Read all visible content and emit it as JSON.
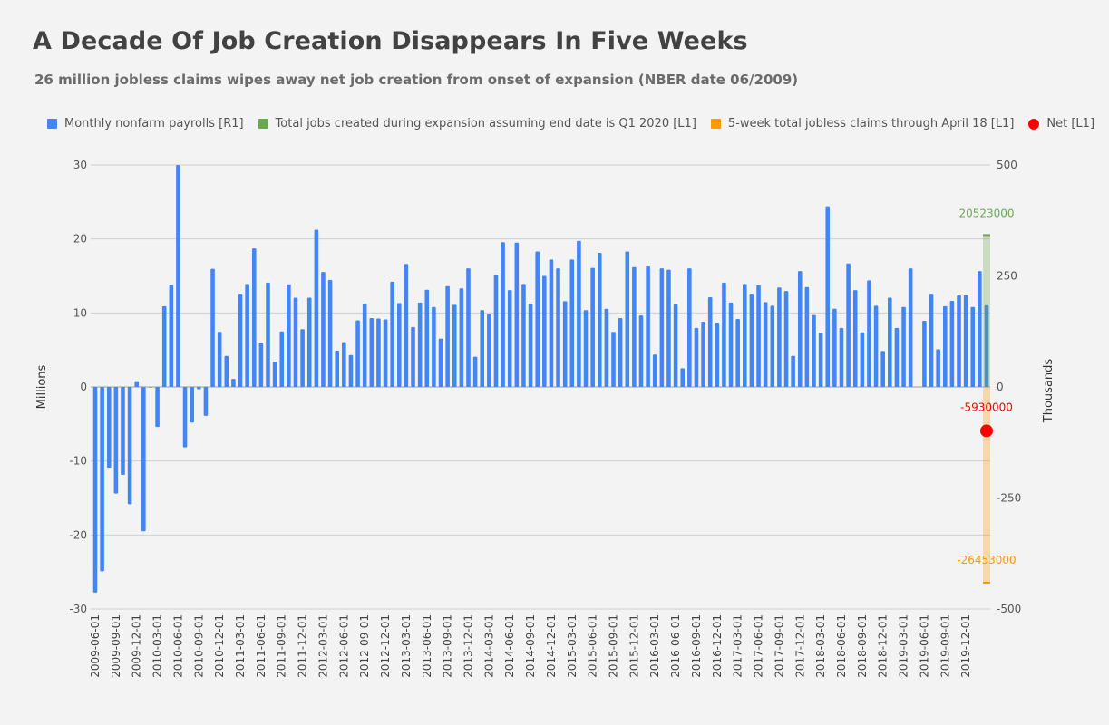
{
  "title": "A Decade Of Job Creation Disappears In Five Weeks",
  "subtitle": "26 million jobless claims wipes away net job creation from onset of expansion (NBER date 06/2009)",
  "legend": [
    {
      "label": "Monthly nonfarm payrolls [R1]",
      "color": "#4285f4",
      "shape": "square"
    },
    {
      "label": "Total jobs created during expansion assuming end date is Q1 2020 [L1]",
      "color": "#6aa84f",
      "shape": "square"
    },
    {
      "label": "5-week total jobless claims through April 18 [L1]",
      "color": "#ff9900",
      "shape": "square"
    },
    {
      "label": "Net [L1]",
      "color": "#ff0000",
      "shape": "dot"
    }
  ],
  "chart_data": {
    "type": "bar",
    "left_axis": {
      "label": "Millions",
      "ticks": [
        30,
        20,
        10,
        0,
        -10,
        -20,
        -30
      ],
      "ylim": [
        -30,
        30
      ]
    },
    "right_axis": {
      "label": "Thousands",
      "ticks": [
        500,
        250,
        0,
        -250,
        -500
      ],
      "ylim": [
        -500,
        500
      ]
    },
    "x_tick_labels": [
      "2009-06-01",
      "2009-09-01",
      "2009-12-01",
      "2010-03-01",
      "2010-06-01",
      "2010-09-01",
      "2010-12-01",
      "2011-03-01",
      "2011-06-01",
      "2011-09-01",
      "2011-12-01",
      "2012-03-01",
      "2012-06-01",
      "2012-09-01",
      "2012-12-01",
      "2013-03-01",
      "2013-06-01",
      "2013-09-01",
      "2013-12-01",
      "2014-03-01",
      "2014-06-01",
      "2014-09-01",
      "2014-12-01",
      "2015-03-01",
      "2015-06-01",
      "2015-09-01",
      "2015-12-01",
      "2016-03-01",
      "2016-06-01",
      "2016-09-01",
      "2016-12-01",
      "2017-03-01",
      "2017-06-01",
      "2017-09-01",
      "2017-12-01",
      "2018-03-01",
      "2018-06-01",
      "2018-09-01",
      "2018-12-01",
      "2019-03-01",
      "2019-06-01",
      "2019-09-01",
      "2019-12-01"
    ],
    "series": [
      {
        "name": "Monthly nonfarm payrolls [R1]",
        "axis": "right",
        "color": "#4285f4",
        "x_start": "2009-06-01",
        "values": [
          -463,
          -415,
          -182,
          -240,
          -198,
          -264,
          13,
          -325,
          -1,
          -90,
          182,
          230,
          500,
          -136,
          -80,
          -5,
          -65,
          266,
          124,
          70,
          18,
          210,
          232,
          312,
          100,
          235,
          57,
          125,
          231,
          201,
          130,
          201,
          354,
          259,
          241,
          82,
          101,
          72,
          150,
          188,
          155,
          154,
          152,
          237,
          189,
          277,
          135,
          190,
          219,
          180,
          109,
          227,
          185,
          222,
          267,
          68,
          173,
          164,
          252,
          326,
          218,
          325,
          232,
          187,
          305,
          250,
          287,
          267,
          193,
          287,
          329,
          173,
          268,
          302,
          176,
          124,
          155,
          305,
          270,
          161,
          272,
          73,
          267,
          264,
          186,
          42,
          267,
          133,
          147,
          202,
          145,
          235,
          190,
          153,
          232,
          210,
          229,
          191,
          183,
          224,
          216,
          70,
          261,
          225,
          162,
          122,
          407,
          176,
          133,
          278,
          218,
          123,
          240,
          183,
          81,
          201,
          133,
          180,
          267,
          0,
          149,
          210,
          85,
          182,
          194,
          206,
          207,
          180,
          261,
          184
        ]
      },
      {
        "name": "Total jobs created during expansion assuming end date is Q1 2020 [L1]",
        "axis": "left",
        "color": "#6aa84f",
        "value": 20523000,
        "label": "20523000"
      },
      {
        "name": "5-week total jobless claims through April 18 [L1]",
        "axis": "left",
        "color": "#ff9900",
        "value": -26453000,
        "label": "-26453000"
      },
      {
        "name": "Net [L1]",
        "axis": "left",
        "color": "#ff0000",
        "value": -5930000,
        "label": "-5930000"
      }
    ],
    "grid": true,
    "legend_position": "top"
  }
}
